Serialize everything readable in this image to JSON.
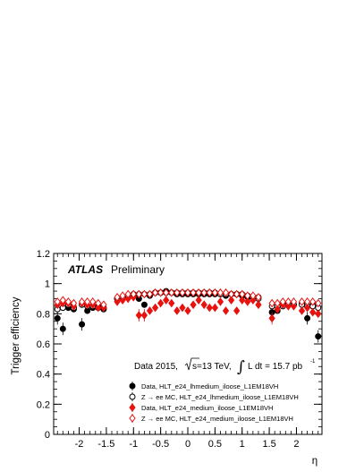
{
  "chart_data": {
    "type": "scatter",
    "title": "",
    "xlabel": "η",
    "ylabel": "Trigger efficiency",
    "xlim": [
      -2.47,
      2.47
    ],
    "ylim": [
      0,
      1.2
    ],
    "xticks": [
      "-2",
      "-1.5",
      "-1",
      "-0.5",
      "0",
      "0.5",
      "1",
      "1.5",
      "2"
    ],
    "yticks": [
      "0",
      "0.2",
      "0.4",
      "0.6",
      "0.8",
      "1",
      "1.2"
    ],
    "grid": false,
    "legend_position": "bottom-right",
    "annotations": {
      "experiment": "ATLAS",
      "status": "Preliminary",
      "dataset": "Data 2015,",
      "energy_pre": "s=13 TeV,",
      "lumi_pre": "L dt = 15.7 pb",
      "lumi_exp": "-1"
    },
    "x": [
      -2.4,
      -2.3,
      -2.2,
      -2.1,
      -1.95,
      -1.85,
      -1.75,
      -1.65,
      -1.55,
      -1.3,
      -1.2,
      -1.1,
      -1.0,
      -0.9,
      -0.8,
      -0.7,
      -0.6,
      -0.5,
      -0.4,
      -0.3,
      -0.2,
      -0.1,
      0.0,
      0.1,
      0.2,
      0.3,
      0.4,
      0.5,
      0.6,
      0.7,
      0.8,
      0.9,
      1.0,
      1.1,
      1.2,
      1.3,
      1.55,
      1.65,
      1.75,
      1.85,
      1.95,
      2.1,
      2.2,
      2.3,
      2.4
    ],
    "series": [
      {
        "name": "Data, HLT_e24_lhmedium_iloose_L1EM18VH",
        "marker": "filled-circle",
        "color": "#000000",
        "values": [
          0.77,
          0.7,
          0.84,
          0.83,
          0.73,
          0.82,
          0.84,
          0.85,
          0.83,
          0.9,
          0.91,
          0.92,
          0.92,
          0.9,
          0.86,
          0.92,
          0.94,
          0.94,
          0.95,
          0.94,
          0.93,
          0.93,
          0.93,
          0.93,
          0.93,
          0.93,
          0.93,
          0.93,
          0.93,
          0.92,
          0.93,
          0.93,
          0.92,
          0.91,
          0.9,
          0.91,
          0.81,
          0.82,
          0.86,
          0.87,
          0.86,
          0.87,
          0.77,
          0.86,
          0.65
        ]
      },
      {
        "name": "Z → ee MC, HLT_e24_lhmedium_iloose_L1EM18VH",
        "marker": "open-circle",
        "color": "#000000",
        "values": [
          0.83,
          0.84,
          0.86,
          0.84,
          0.86,
          0.85,
          0.85,
          0.84,
          0.84,
          0.9,
          0.91,
          0.92,
          0.93,
          0.93,
          0.93,
          0.93,
          0.94,
          0.94,
          0.94,
          0.94,
          0.94,
          0.94,
          0.94,
          0.94,
          0.94,
          0.94,
          0.94,
          0.94,
          0.93,
          0.93,
          0.93,
          0.93,
          0.93,
          0.92,
          0.91,
          0.9,
          0.85,
          0.85,
          0.85,
          0.86,
          0.86,
          0.86,
          0.85,
          0.85,
          0.84
        ]
      },
      {
        "name": "Data, HLT_e24_medium_iloose_L1EM18VH",
        "marker": "filled-diamond",
        "color": "#e8120f",
        "values": [
          0.86,
          0.87,
          0.87,
          0.85,
          0.87,
          0.86,
          0.86,
          0.84,
          0.84,
          0.88,
          0.89,
          0.9,
          0.91,
          0.79,
          0.79,
          0.82,
          0.84,
          0.87,
          0.89,
          0.87,
          0.82,
          0.84,
          0.82,
          0.86,
          0.89,
          0.86,
          0.84,
          0.84,
          0.88,
          0.82,
          0.89,
          0.82,
          0.89,
          0.88,
          0.89,
          0.86,
          0.77,
          0.83,
          0.86,
          0.85,
          0.85,
          0.82,
          0.84,
          0.81,
          0.8
        ]
      },
      {
        "name": "Z → ee MC, HLT_e24_medium_iloose_L1EM18VH",
        "marker": "open-diamond",
        "color": "#e8120f",
        "values": [
          0.88,
          0.89,
          0.88,
          0.87,
          0.88,
          0.88,
          0.88,
          0.87,
          0.86,
          0.91,
          0.92,
          0.93,
          0.93,
          0.93,
          0.93,
          0.93,
          0.94,
          0.94,
          0.94,
          0.94,
          0.94,
          0.94,
          0.94,
          0.94,
          0.94,
          0.94,
          0.94,
          0.94,
          0.94,
          0.94,
          0.93,
          0.93,
          0.93,
          0.92,
          0.92,
          0.91,
          0.87,
          0.87,
          0.88,
          0.88,
          0.88,
          0.88,
          0.88,
          0.88,
          0.87
        ]
      }
    ]
  }
}
